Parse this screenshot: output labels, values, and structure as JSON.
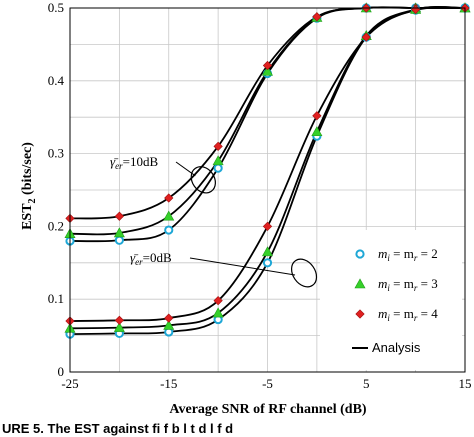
{
  "chart_data": {
    "type": "line",
    "xlabel": "Average SNR of RF channel (dB)",
    "ylabel_main": "EST",
    "ylabel_sub": "2",
    "ylabel_unit": "(bits/sec)",
    "xlim": [
      -25,
      15
    ],
    "ylim": [
      0,
      0.5
    ],
    "xticks": [
      "-25",
      "-15",
      "-5",
      "5",
      "15"
    ],
    "xtick_values": [
      -25,
      -15,
      -5,
      5,
      15
    ],
    "yticks": [
      "0",
      "0.1",
      "0.2",
      "0.3",
      "0.4",
      "0.5"
    ],
    "ytick_values": [
      0,
      0.1,
      0.2,
      0.3,
      0.4,
      0.5
    ],
    "grid": true,
    "legend_position": "bottom-right",
    "annotations": {
      "high": {
        "prefix": "γ̄",
        "sub": "er",
        "suffix": "=10dB",
        "ellipse": {
          "cx": -11.5,
          "cy": 0.264
        }
      },
      "low": {
        "prefix": "γ̄",
        "sub": "er",
        "suffix": "=0dB",
        "ellipse": {
          "cx": -1.3,
          "cy": 0.136
        }
      }
    },
    "legend": [
      {
        "label_base": "m",
        "sub1": "i",
        "mid": " = m",
        "sub2": "r",
        "suffix": " = 2",
        "marker": "circle",
        "color": "#1ea7d6"
      },
      {
        "label_base": "m",
        "sub1": "i",
        "mid": " = m",
        "sub2": "r",
        "suffix": " = 3",
        "marker": "triangle",
        "color": "#36d02a"
      },
      {
        "label_base": "m",
        "sub1": "i",
        "mid": " = m",
        "sub2": "r",
        "suffix": " = 4",
        "marker": "diamond",
        "color": "#e02020"
      },
      {
        "label": "Analysis",
        "marker": "line",
        "color": "#000000"
      }
    ],
    "marker_x": [
      -25,
      -20,
      -15,
      -10,
      -5,
      0,
      5,
      10,
      15
    ],
    "series": [
      {
        "marker": "circle",
        "color": "#1ea7d6",
        "gamma": "10dB",
        "values": [
          0.18,
          0.181,
          0.195,
          0.28,
          0.41,
          0.486,
          0.5,
          0.5,
          0.5
        ]
      },
      {
        "marker": "triangle",
        "color": "#36d02a",
        "gamma": "10dB",
        "values": [
          0.19,
          0.191,
          0.214,
          0.29,
          0.413,
          0.487,
          0.5,
          0.5,
          0.5
        ]
      },
      {
        "marker": "diamond",
        "color": "#e02020",
        "gamma": "10dB",
        "values": [
          0.211,
          0.214,
          0.239,
          0.31,
          0.421,
          0.488,
          0.5,
          0.5,
          0.5
        ]
      },
      {
        "marker": "circle",
        "color": "#1ea7d6",
        "gamma": "0dB",
        "values": [
          0.052,
          0.053,
          0.055,
          0.072,
          0.15,
          0.324,
          0.46,
          0.497,
          0.5
        ]
      },
      {
        "marker": "triangle",
        "color": "#36d02a",
        "gamma": "0dB",
        "values": [
          0.06,
          0.061,
          0.064,
          0.081,
          0.165,
          0.33,
          0.462,
          0.498,
          0.5
        ]
      },
      {
        "marker": "diamond",
        "color": "#e02020",
        "gamma": "0dB",
        "values": [
          0.07,
          0.071,
          0.074,
          0.098,
          0.2,
          0.352,
          0.46,
          0.498,
          0.5
        ]
      }
    ]
  },
  "caption_fragment": "URE 5. The EST   against fi  f  b  l t  d   l  f     d"
}
